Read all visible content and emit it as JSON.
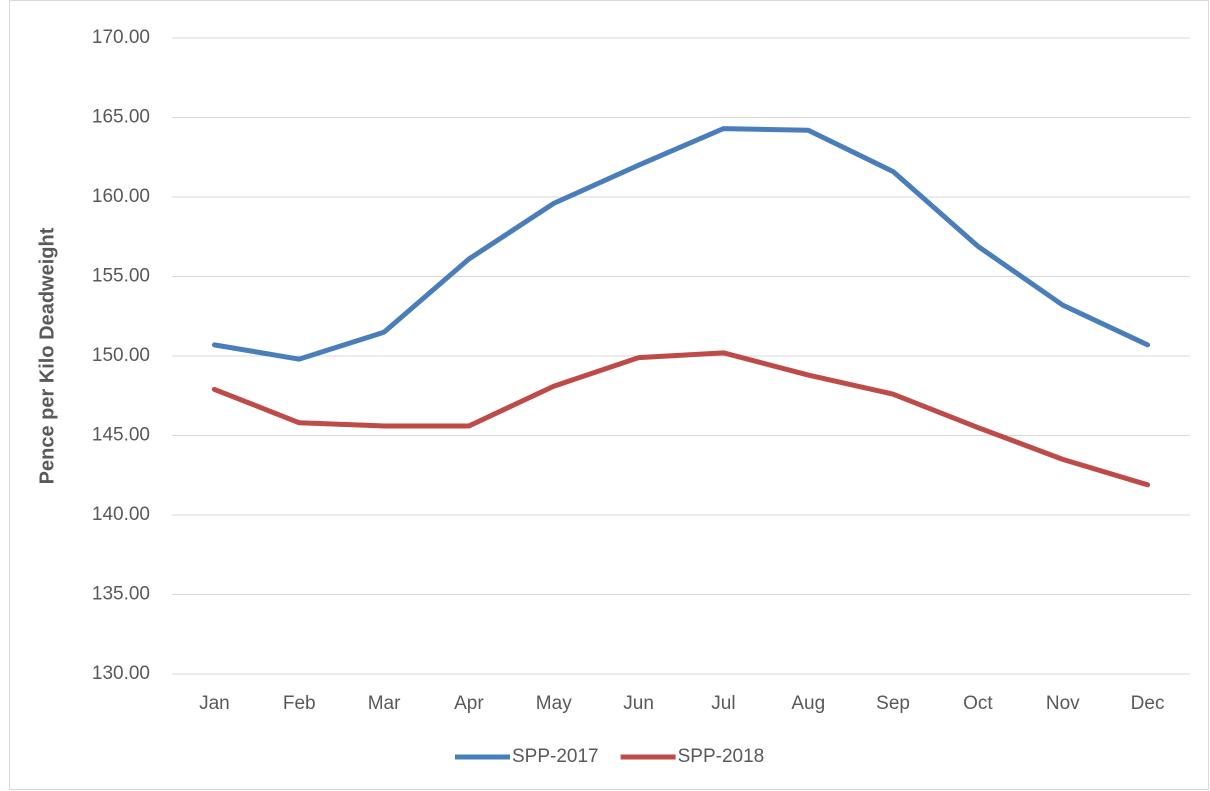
{
  "chart_data": {
    "type": "line",
    "y_label": "Pence per Kilo Deadweight",
    "categories": [
      "Jan",
      "Feb",
      "Mar",
      "Apr",
      "May",
      "Jun",
      "Jul",
      "Aug",
      "Sep",
      "Oct",
      "Nov",
      "Dec"
    ],
    "series": [
      {
        "name": "SPP-2017",
        "color": "#4a7ebb",
        "values": [
          150.7,
          149.8,
          151.5,
          156.1,
          159.6,
          162.0,
          164.3,
          164.2,
          161.6,
          156.9,
          153.2,
          150.7
        ]
      },
      {
        "name": "SPP-2018",
        "color": "#be4b48",
        "values": [
          147.9,
          145.8,
          145.6,
          145.6,
          148.1,
          149.9,
          150.2,
          148.8,
          147.6,
          145.5,
          143.5,
          141.9
        ]
      }
    ],
    "ylim": [
      130,
      170
    ],
    "yticks": [
      {
        "value": 130,
        "label": "130.00"
      },
      {
        "value": 135,
        "label": "135.00"
      },
      {
        "value": 140,
        "label": "140.00"
      },
      {
        "value": 145,
        "label": "145.00"
      },
      {
        "value": 150,
        "label": "150.00"
      },
      {
        "value": 155,
        "label": "155.00"
      },
      {
        "value": 160,
        "label": "160.00"
      },
      {
        "value": 165,
        "label": "165.00"
      },
      {
        "value": 170,
        "label": "170.00"
      }
    ],
    "grid": true,
    "legend": "bottom"
  }
}
